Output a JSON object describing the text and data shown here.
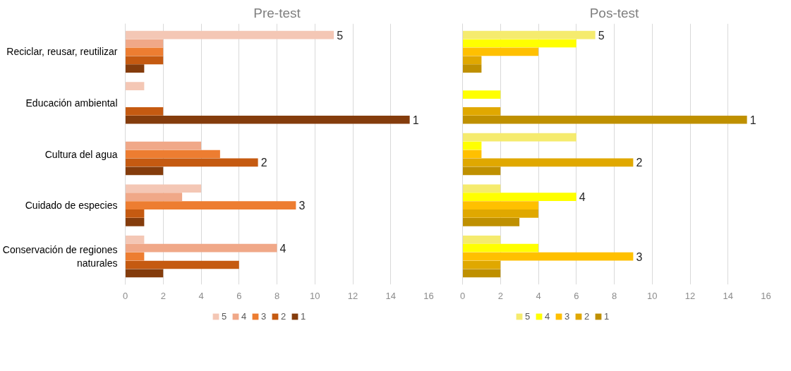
{
  "chart_data": [
    {
      "type": "bar",
      "orientation": "horizontal",
      "title": "Pre-test",
      "categories": [
        "Reciclar, reusar, reutilizar",
        "Educación ambiental",
        "Cultura del agua",
        "Cuidado de especies",
        "Conservación de regiones naturales"
      ],
      "series": [
        {
          "name": "5",
          "color": "#f4c7b5",
          "values": [
            11,
            1,
            0,
            4,
            1
          ]
        },
        {
          "name": "4",
          "color": "#f0a888",
          "values": [
            2,
            0,
            4,
            3,
            8
          ]
        },
        {
          "name": "3",
          "color": "#ed7d31",
          "values": [
            2,
            0,
            5,
            9,
            1
          ]
        },
        {
          "name": "2",
          "color": "#c55a11",
          "values": [
            2,
            2,
            7,
            1,
            6
          ]
        },
        {
          "name": "1",
          "color": "#843c0c",
          "values": [
            1,
            15,
            2,
            1,
            2
          ]
        }
      ],
      "xlim": [
        0,
        16
      ],
      "xticks": [
        0,
        2,
        4,
        6,
        8,
        10,
        12,
        14,
        16
      ],
      "grid": "x",
      "legend": "bottom"
    },
    {
      "type": "bar",
      "orientation": "horizontal",
      "title": "Pos-test",
      "categories": [
        null,
        null,
        null,
        null,
        null
      ],
      "series": [
        {
          "name": "5",
          "color": "#f5eb6e",
          "values": [
            7,
            0,
            6,
            2,
            2
          ]
        },
        {
          "name": "4",
          "color": "#ffff00",
          "values": [
            6,
            2,
            1,
            6,
            4
          ]
        },
        {
          "name": "3",
          "color": "#ffc000",
          "values": [
            4,
            0,
            1,
            4,
            9
          ]
        },
        {
          "name": "2",
          "color": "#e0a800",
          "values": [
            1,
            2,
            9,
            4,
            2
          ]
        },
        {
          "name": "1",
          "color": "#bf9000",
          "values": [
            1,
            15,
            2,
            3,
            2
          ]
        }
      ],
      "xlim": [
        0,
        16
      ],
      "xticks": [
        0,
        2,
        4,
        6,
        8,
        10,
        12,
        14,
        16
      ],
      "grid": "x",
      "legend": "bottom",
      "tick_labels": "x"
    }
  ]
}
